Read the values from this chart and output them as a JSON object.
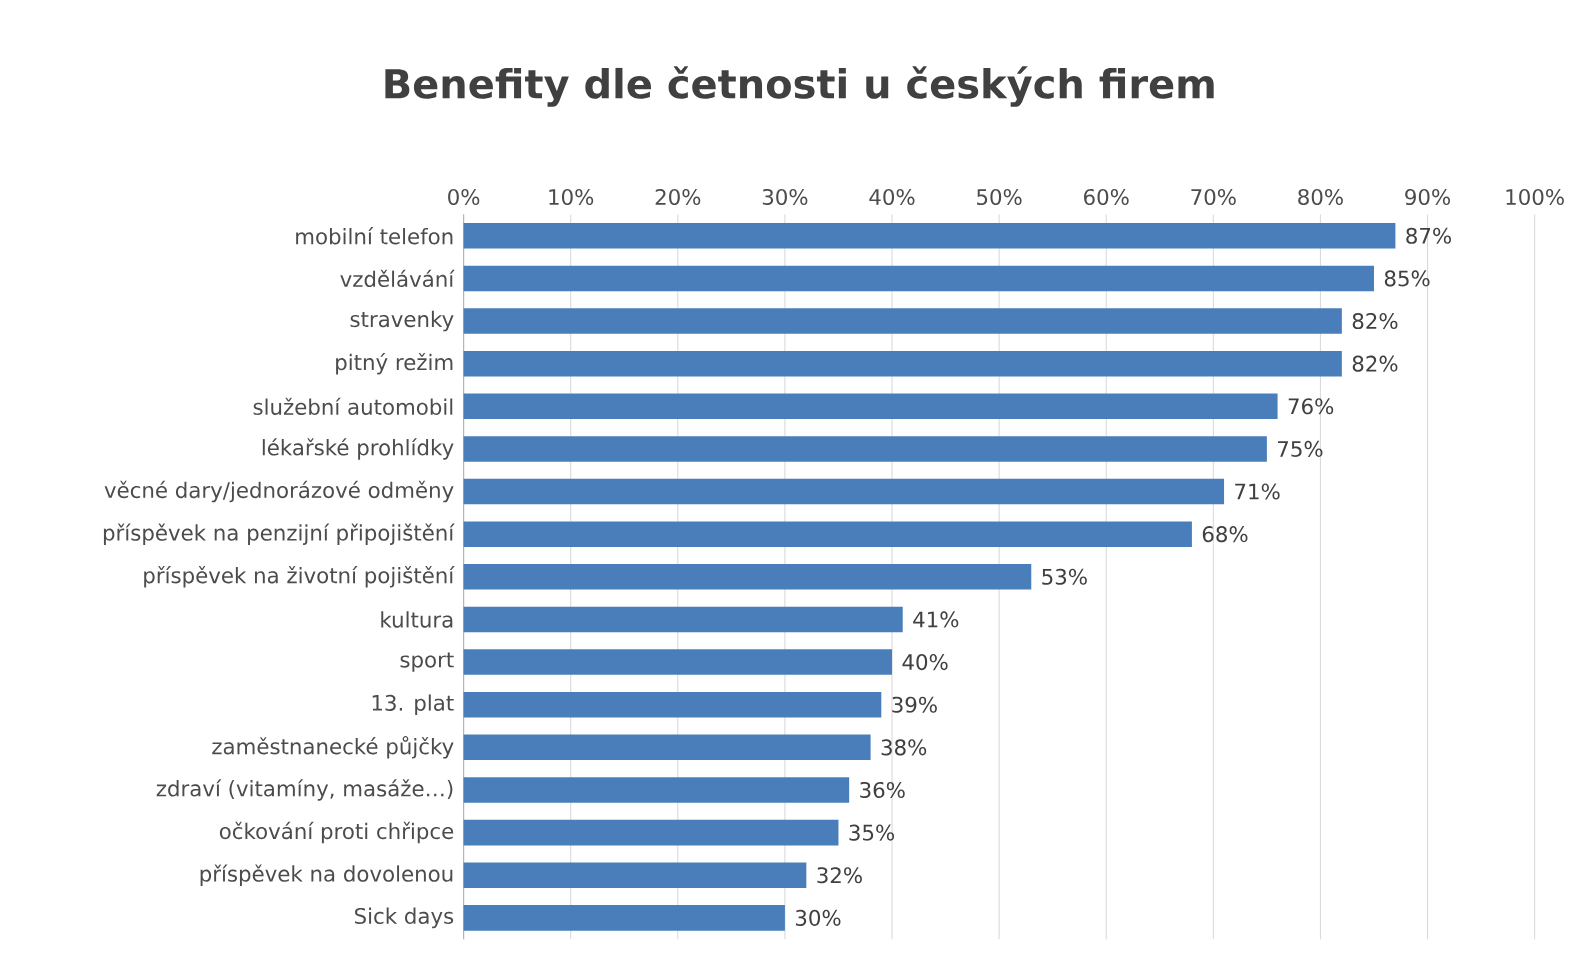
{
  "chart_data": {
    "type": "bar",
    "orientation": "horizontal",
    "title": "Benefity dle četnosti u českých firem",
    "categories": [
      "mobilní telefon",
      "vzdělávání",
      "stravenky",
      "pitný režim",
      "služební automobil",
      "lékařské prohlídky",
      "věcné dary/jednorázové odměny",
      "příspěvek na penzijní připojištění",
      "příspěvek na životní pojištění",
      "kultura",
      "sport",
      "13. plat",
      "zaměstnanecké půjčky",
      "zdraví (vitamíny, masáže…)",
      "očkování proti chřipce",
      "příspěvek na dovolenou",
      "Sick days"
    ],
    "values": [
      87,
      85,
      82,
      82,
      76,
      75,
      71,
      68,
      53,
      41,
      40,
      39,
      38,
      36,
      35,
      32,
      30
    ],
    "value_labels": [
      "87%",
      "85%",
      "82%",
      "82%",
      "76%",
      "75%",
      "71%",
      "68%",
      "53%",
      "41%",
      "40%",
      "39%",
      "38%",
      "36%",
      "35%",
      "32%",
      "30%"
    ],
    "color": "#4a7ebb",
    "xlim": [
      0,
      100
    ],
    "xticks": [
      {
        "value": 0,
        "label": "0%"
      },
      {
        "value": 10,
        "label": "10%"
      },
      {
        "value": 20,
        "label": "20%"
      },
      {
        "value": 30,
        "label": "30%"
      },
      {
        "value": 40,
        "label": "40%"
      },
      {
        "value": 50,
        "label": "50%"
      },
      {
        "value": 60,
        "label": "60%"
      },
      {
        "value": 70,
        "label": "70%"
      },
      {
        "value": 80,
        "label": "80%"
      },
      {
        "value": 90,
        "label": "90%"
      },
      {
        "value": 100,
        "label": "100%"
      }
    ],
    "grid": "x"
  }
}
